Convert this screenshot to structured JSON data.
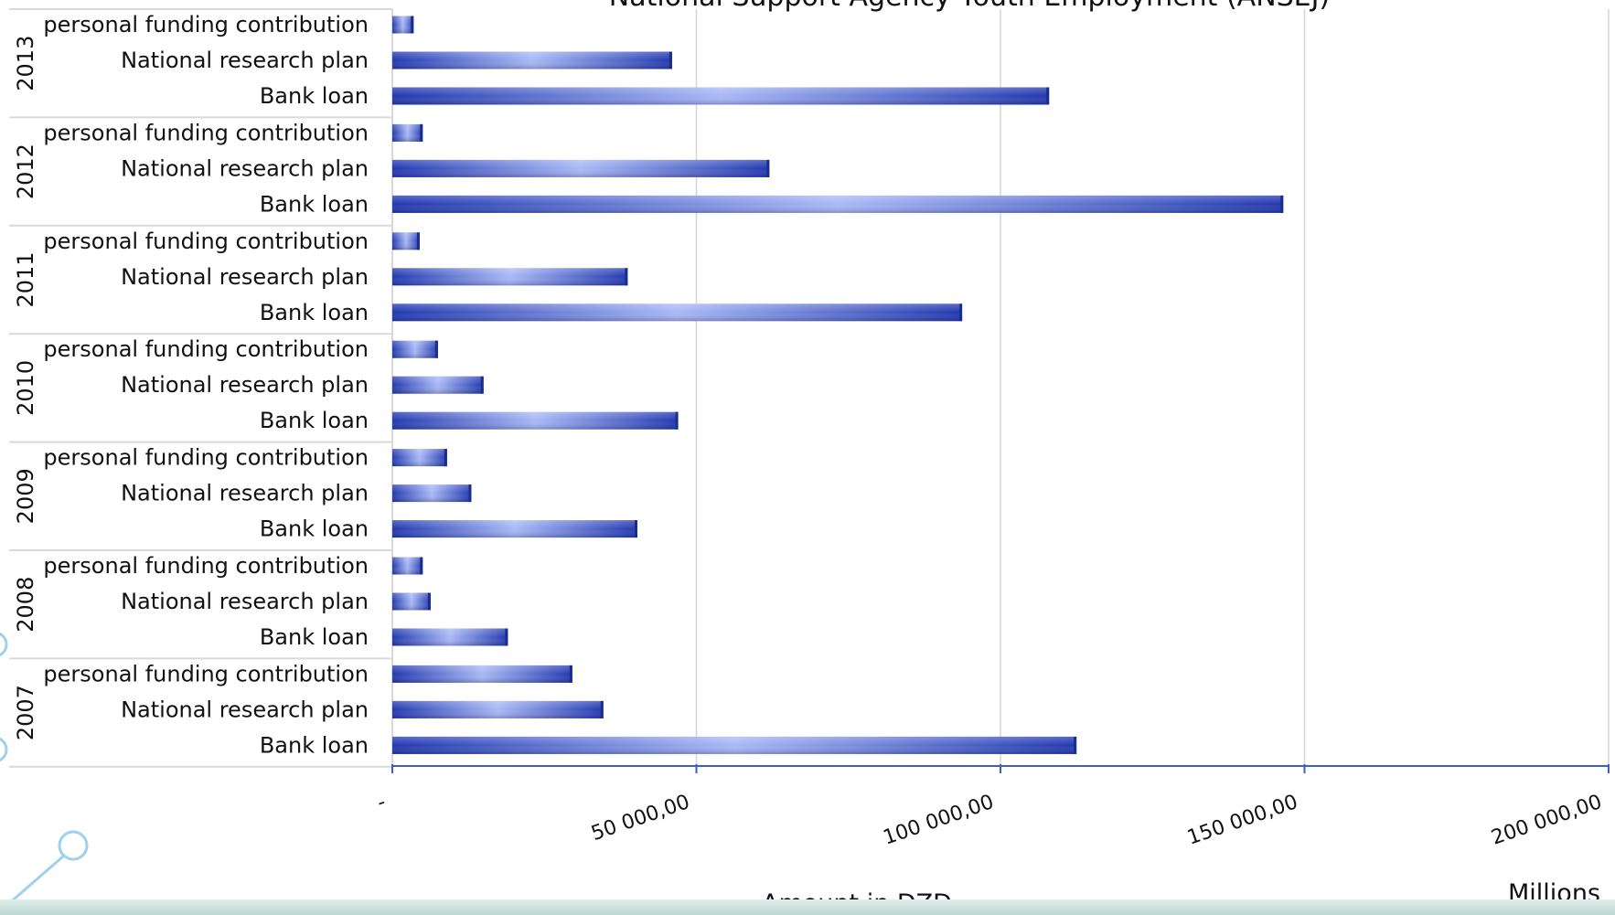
{
  "chart_data": {
    "type": "bar",
    "orientation": "horizontal",
    "title": "National Support Agency Youth Employment  (ANSEJ)",
    "xlabel": "Amount in DZD",
    "units_label": "Millions",
    "xlim": [
      0,
      200000
    ],
    "x_ticks": [
      {
        "value": 0,
        "label": "-"
      },
      {
        "value": 50000,
        "label": "50 000,00"
      },
      {
        "value": 100000,
        "label": "100 000,00"
      },
      {
        "value": 150000,
        "label": "150 000,00"
      },
      {
        "value": 200000,
        "label": "200 000,00"
      }
    ],
    "grid": "vertical",
    "legend": "none",
    "colors": {
      "bar_dark": "#2239b0",
      "bar_light": "#a9b9f6",
      "grid": "#d3d6dc",
      "axis": "#3f5fc0",
      "group_line": "#d9d9d9"
    },
    "groups": [
      {
        "year": "2013",
        "bars": [
          {
            "category": "personal funding contribution",
            "value": 3500
          },
          {
            "category": "National research plan",
            "value": 46000
          },
          {
            "category": "Bank loan",
            "value": 108000
          }
        ]
      },
      {
        "year": "2012",
        "bars": [
          {
            "category": "personal funding contribution",
            "value": 5000
          },
          {
            "category": "National research plan",
            "value": 62000
          },
          {
            "category": "Bank loan",
            "value": 146500
          }
        ]
      },
      {
        "year": "2011",
        "bars": [
          {
            "category": "personal funding contribution",
            "value": 4500
          },
          {
            "category": "National research plan",
            "value": 38700
          },
          {
            "category": "Bank loan",
            "value": 93700
          }
        ]
      },
      {
        "year": "2010",
        "bars": [
          {
            "category": "personal funding contribution",
            "value": 7500
          },
          {
            "category": "National research plan",
            "value": 15000
          },
          {
            "category": "Bank loan",
            "value": 47000
          }
        ]
      },
      {
        "year": "2009",
        "bars": [
          {
            "category": "personal funding contribution",
            "value": 9000
          },
          {
            "category": "National research plan",
            "value": 13000
          },
          {
            "category": "Bank loan",
            "value": 40300
          }
        ]
      },
      {
        "year": "2008",
        "bars": [
          {
            "category": "personal funding contribution",
            "value": 5000
          },
          {
            "category": "National research plan",
            "value": 6300
          },
          {
            "category": "Bank loan",
            "value": 19000
          }
        ]
      },
      {
        "year": "2007",
        "bars": [
          {
            "category": "personal funding contribution",
            "value": 29600
          },
          {
            "category": "National research plan",
            "value": 34700
          },
          {
            "category": "Bank loan",
            "value": 112500
          }
        ]
      }
    ]
  }
}
